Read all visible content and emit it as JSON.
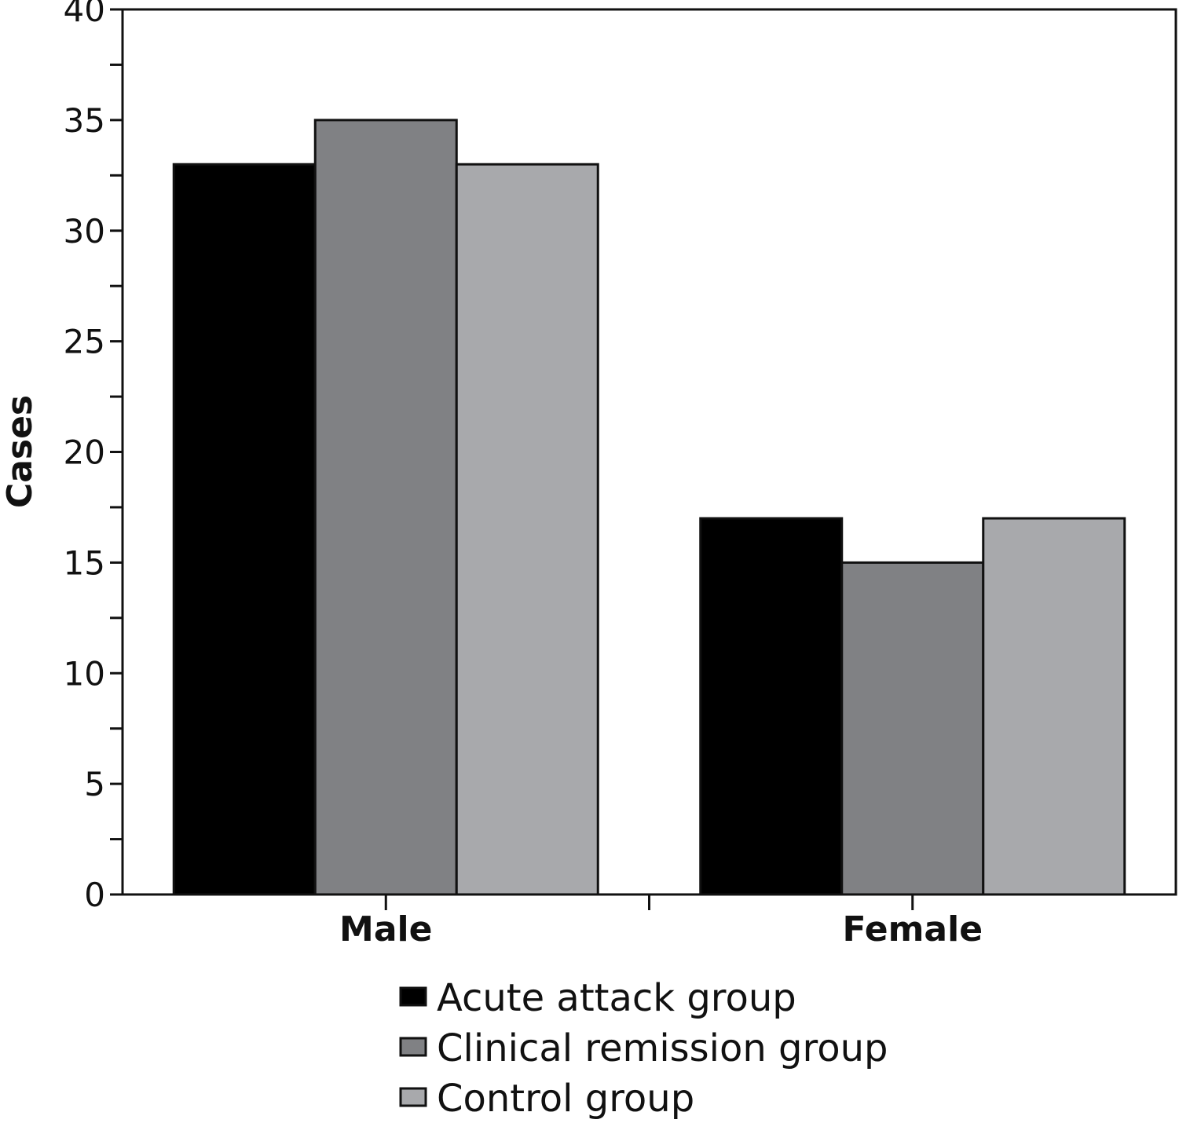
{
  "chart_data": {
    "type": "bar",
    "title": "",
    "xlabel": "",
    "ylabel": "Cases",
    "ylim": [
      0,
      40
    ],
    "yticks": [
      0,
      5,
      10,
      15,
      20,
      25,
      30,
      35,
      40
    ],
    "categories": [
      "Male",
      "Female"
    ],
    "series": [
      {
        "name": "Acute attack group",
        "values": [
          33,
          17
        ],
        "color": "#000000"
      },
      {
        "name": "Clinical remission group",
        "values": [
          35,
          15
        ],
        "color": "#808184"
      },
      {
        "name": "Control group",
        "values": [
          33,
          17
        ],
        "color": "#a8a9ac"
      }
    ],
    "grid": false,
    "legend": "bottom"
  }
}
